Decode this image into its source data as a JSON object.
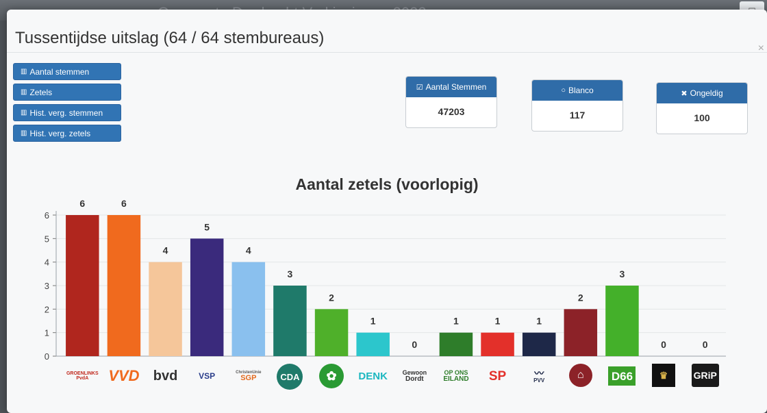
{
  "window": {
    "ghost_title": "Gemeente Dordrecht Verkiezingen 2022"
  },
  "modal": {
    "title": "Tussentijdse uitslag (64 / 64 stembureaus)",
    "close": "×"
  },
  "side_buttons": [
    {
      "label": "Aantal stemmen",
      "icon": "bar-chart-icon"
    },
    {
      "label": "Zetels",
      "icon": "bar-chart-icon"
    },
    {
      "label": "Hist. verg. stemmen",
      "icon": "bar-chart-icon"
    },
    {
      "label": "Hist. verg. zetels",
      "icon": "bar-chart-icon"
    }
  ],
  "stats": [
    {
      "label": "Aantal Stemmen",
      "value": "47203",
      "icon": "check-square-icon",
      "glyph": "☑"
    },
    {
      "label": "Blanco",
      "value": "117",
      "icon": "circle-icon",
      "glyph": "○"
    },
    {
      "label": "Ongeldig",
      "value": "100",
      "icon": "x-icon",
      "glyph": "✖"
    }
  ],
  "parties": [
    {
      "logo_text": "GROENLINKS PvdA",
      "color": "#b0261e"
    },
    {
      "logo_text": "VVD",
      "color": "#f06a1e"
    },
    {
      "logo_text": "bvd",
      "color": "#f5c69a"
    },
    {
      "logo_text": "VSP",
      "color": "#3a2a7c"
    },
    {
      "logo_text": "SGP",
      "sub": "ChristenUnie",
      "color": "#8ac0ee"
    },
    {
      "logo_text": "CDA",
      "color": "#1f7a6a"
    },
    {
      "logo_text": "",
      "color": "#4fb02a"
    },
    {
      "logo_text": "DENK",
      "color": "#2cc6cc"
    },
    {
      "logo_text": "Dordt",
      "sub": "Gewoon",
      "color": "#e0e0e0"
    },
    {
      "logo_text": "EILAND",
      "sub": "OP ONS",
      "color": "#2e7d2a"
    },
    {
      "logo_text": "SP",
      "color": "#e3302a"
    },
    {
      "logo_text": "PVV",
      "color": "#1e2848"
    },
    {
      "logo_text": "",
      "color": "#8c2228"
    },
    {
      "logo_text": "D66",
      "color": "#44b02a"
    },
    {
      "logo_text": "",
      "color": "#222222"
    },
    {
      "logo_text": "GRiP",
      "color": "#222222"
    }
  ],
  "chart_data": {
    "type": "bar",
    "title": "Aantal zetels (voorlopig)",
    "xlabel": "",
    "ylabel": "",
    "ylim": [
      0,
      6
    ],
    "yticks": [
      0,
      1,
      2,
      3,
      4,
      5,
      6
    ],
    "grid": true,
    "categories": [
      "GROENLINKS PvdA",
      "VVD",
      "bvd",
      "VSP",
      "ChristenUnie SGP",
      "CDA",
      "",
      "DENK",
      "Gewoon Dordt",
      "OP ONS EILAND",
      "SP",
      "PVV",
      "",
      "D66",
      "",
      "GRiP"
    ],
    "values": [
      6,
      6,
      4,
      5,
      4,
      3,
      2,
      1,
      0,
      1,
      1,
      1,
      2,
      3,
      0,
      0
    ],
    "colors": [
      "#b0261e",
      "#f06a1e",
      "#f5c69a",
      "#3a2a7c",
      "#8ac0ee",
      "#1f7a6a",
      "#4fb02a",
      "#2cc6cc",
      "#e0e0e0",
      "#2e7d2a",
      "#e3302a",
      "#1e2848",
      "#8c2228",
      "#44b02a",
      "#222222",
      "#222222"
    ]
  }
}
